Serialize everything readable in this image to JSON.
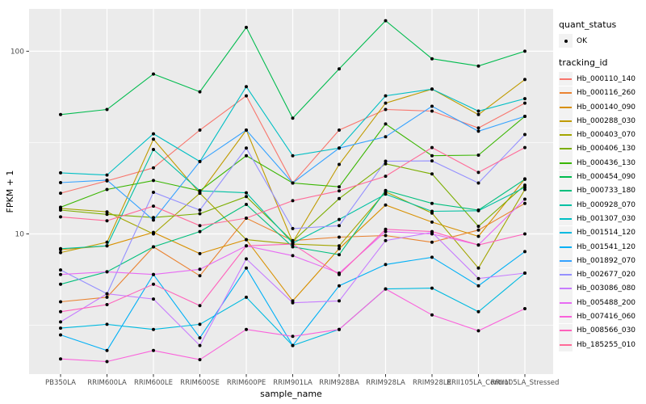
{
  "figure": {
    "background": "#FFFFFF",
    "panel_background": "#EBEBEB",
    "grid_color": "#FFFFFF",
    "tick_color": "#333333",
    "tick_label_color": "#4D4D4D",
    "point_color": "#000000"
  },
  "chart_data": {
    "type": "line",
    "title": "",
    "xlabel": "sample_name",
    "ylabel": "FPKM + 1",
    "y_scale": "log10",
    "y_ticks": [
      "10",
      "100"
    ],
    "y_minor_gridlines": [
      3.162,
      31.62
    ],
    "ylim": [
      1.7,
      170
    ],
    "grid": true,
    "legend_position": "right",
    "point_marker": "black-dot",
    "categories": [
      "PB350LA",
      "RRIM600LA",
      "RRIM600LE",
      "RRIM600SE",
      "RRIM600PE",
      "RRIM901LA",
      "RRIM928BA",
      "RRIM928LA",
      "RRIM928LE",
      "RRII105LA_Control",
      "RRII105LA_Stressed"
    ],
    "legends": {
      "quant_status": {
        "title": "quant_status",
        "entries": [
          {
            "label": "OK",
            "marker": "point"
          }
        ]
      },
      "tracking_id": {
        "title": "tracking_id"
      }
    },
    "series": [
      {
        "name": "Hb_000110_140",
        "color": "#F8766D",
        "values": [
          16.7,
          19.5,
          23,
          37,
          57,
          19,
          37,
          48,
          47,
          38,
          52
        ]
      },
      {
        "name": "Hb_000116_260",
        "color": "#EA8331",
        "values": [
          4.25,
          4.5,
          8.5,
          5.9,
          12.2,
          9.2,
          9.6,
          9.8,
          9.0,
          10.5,
          14.7
        ]
      },
      {
        "name": "Hb_000140_090",
        "color": "#D89000",
        "values": [
          8.2,
          8.6,
          10.2,
          7.8,
          9.3,
          4.3,
          8.3,
          14.4,
          11.6,
          9.7,
          20
        ]
      },
      {
        "name": "Hb_000288_030",
        "color": "#C09B00",
        "values": [
          7.9,
          9.0,
          33,
          16.7,
          37,
          9.0,
          24,
          52,
          62,
          45,
          70
        ]
      },
      {
        "name": "Hb_000403_070",
        "color": "#A3A500",
        "values": [
          13.8,
          13.2,
          10.0,
          16.7,
          9.3,
          8.8,
          8.6,
          17.0,
          13.0,
          6.5,
          17.5
        ]
      },
      {
        "name": "Hb_000406_130",
        "color": "#7CAE00",
        "values": [
          13.5,
          12.8,
          12.3,
          12.9,
          16.0,
          9.1,
          15.6,
          24.2,
          21.3,
          11.0,
          18.5
        ]
      },
      {
        "name": "Hb_000436_130",
        "color": "#39B600",
        "values": [
          14.0,
          17.5,
          19.6,
          17.2,
          26.8,
          19.0,
          18.1,
          40,
          26.8,
          27,
          44
        ]
      },
      {
        "name": "Hb_000454_090",
        "color": "#00BB4E",
        "values": [
          45,
          48,
          75,
          60,
          135,
          43,
          80,
          147,
          91,
          83,
          100
        ]
      },
      {
        "name": "Hb_000733_180",
        "color": "#00BF7D",
        "values": [
          5.3,
          6.2,
          8.5,
          10.3,
          14.5,
          8.5,
          7.7,
          17.3,
          14.7,
          13.5,
          19.9
        ]
      },
      {
        "name": "Hb_000928_070",
        "color": "#00C1A3",
        "values": [
          8.3,
          8.6,
          29,
          17.2,
          16.8,
          8.9,
          12.0,
          16.5,
          13.3,
          13.4,
          18.0
        ]
      },
      {
        "name": "Hb_001307_030",
        "color": "#00BFC4",
        "values": [
          21.6,
          21.0,
          35.3,
          24.9,
          64,
          26.8,
          29.5,
          57,
          62,
          47,
          55
        ]
      },
      {
        "name": "Hb_001514_120",
        "color": "#00BAE0",
        "values": [
          3.05,
          3.2,
          3.0,
          3.2,
          4.5,
          2.45,
          3.0,
          5.0,
          5.05,
          3.75,
          6.1
        ]
      },
      {
        "name": "Hb_001541_120",
        "color": "#00B0F6",
        "values": [
          2.8,
          2.3,
          6.0,
          2.7,
          6.5,
          2.45,
          5.2,
          6.8,
          7.45,
          5.2,
          8.0
        ]
      },
      {
        "name": "Hb_001892_070",
        "color": "#35A2FF",
        "values": [
          19.1,
          19.7,
          11.9,
          24.9,
          37,
          19,
          29.5,
          34,
          50,
          36.5,
          44
        ]
      },
      {
        "name": "Hb_002677_020",
        "color": "#9590FF",
        "values": [
          6.35,
          4.7,
          16.9,
          13.5,
          29.5,
          10.7,
          11.1,
          25,
          25.1,
          19,
          35
        ]
      },
      {
        "name": "Hb_003086_080",
        "color": "#C77CFF",
        "values": [
          3.3,
          4.7,
          4.4,
          2.45,
          7.3,
          4.2,
          4.3,
          9.2,
          10.2,
          5.7,
          6.1
        ]
      },
      {
        "name": "Hb_005488_200",
        "color": "#E76BF3",
        "values": [
          6.0,
          6.2,
          6.0,
          6.4,
          8.6,
          7.6,
          6.1,
          10.3,
          10.0,
          8.7,
          15.5
        ]
      },
      {
        "name": "Hb_007416_060",
        "color": "#FA62DB",
        "values": [
          2.07,
          2.0,
          2.3,
          2.05,
          3.0,
          2.75,
          3.0,
          5.0,
          3.6,
          2.95,
          3.9
        ]
      },
      {
        "name": "Hb_008566_030",
        "color": "#FF62BC",
        "values": [
          3.75,
          4.1,
          5.3,
          4.05,
          8.6,
          8.8,
          6.0,
          10.6,
          10.3,
          8.7,
          10.0
        ]
      },
      {
        "name": "Hb_185255_010",
        "color": "#FF6A98",
        "values": [
          12.4,
          11.8,
          14.2,
          11.1,
          12.2,
          15.2,
          17.2,
          20.7,
          29.7,
          21.7,
          29.7
        ]
      }
    ]
  }
}
